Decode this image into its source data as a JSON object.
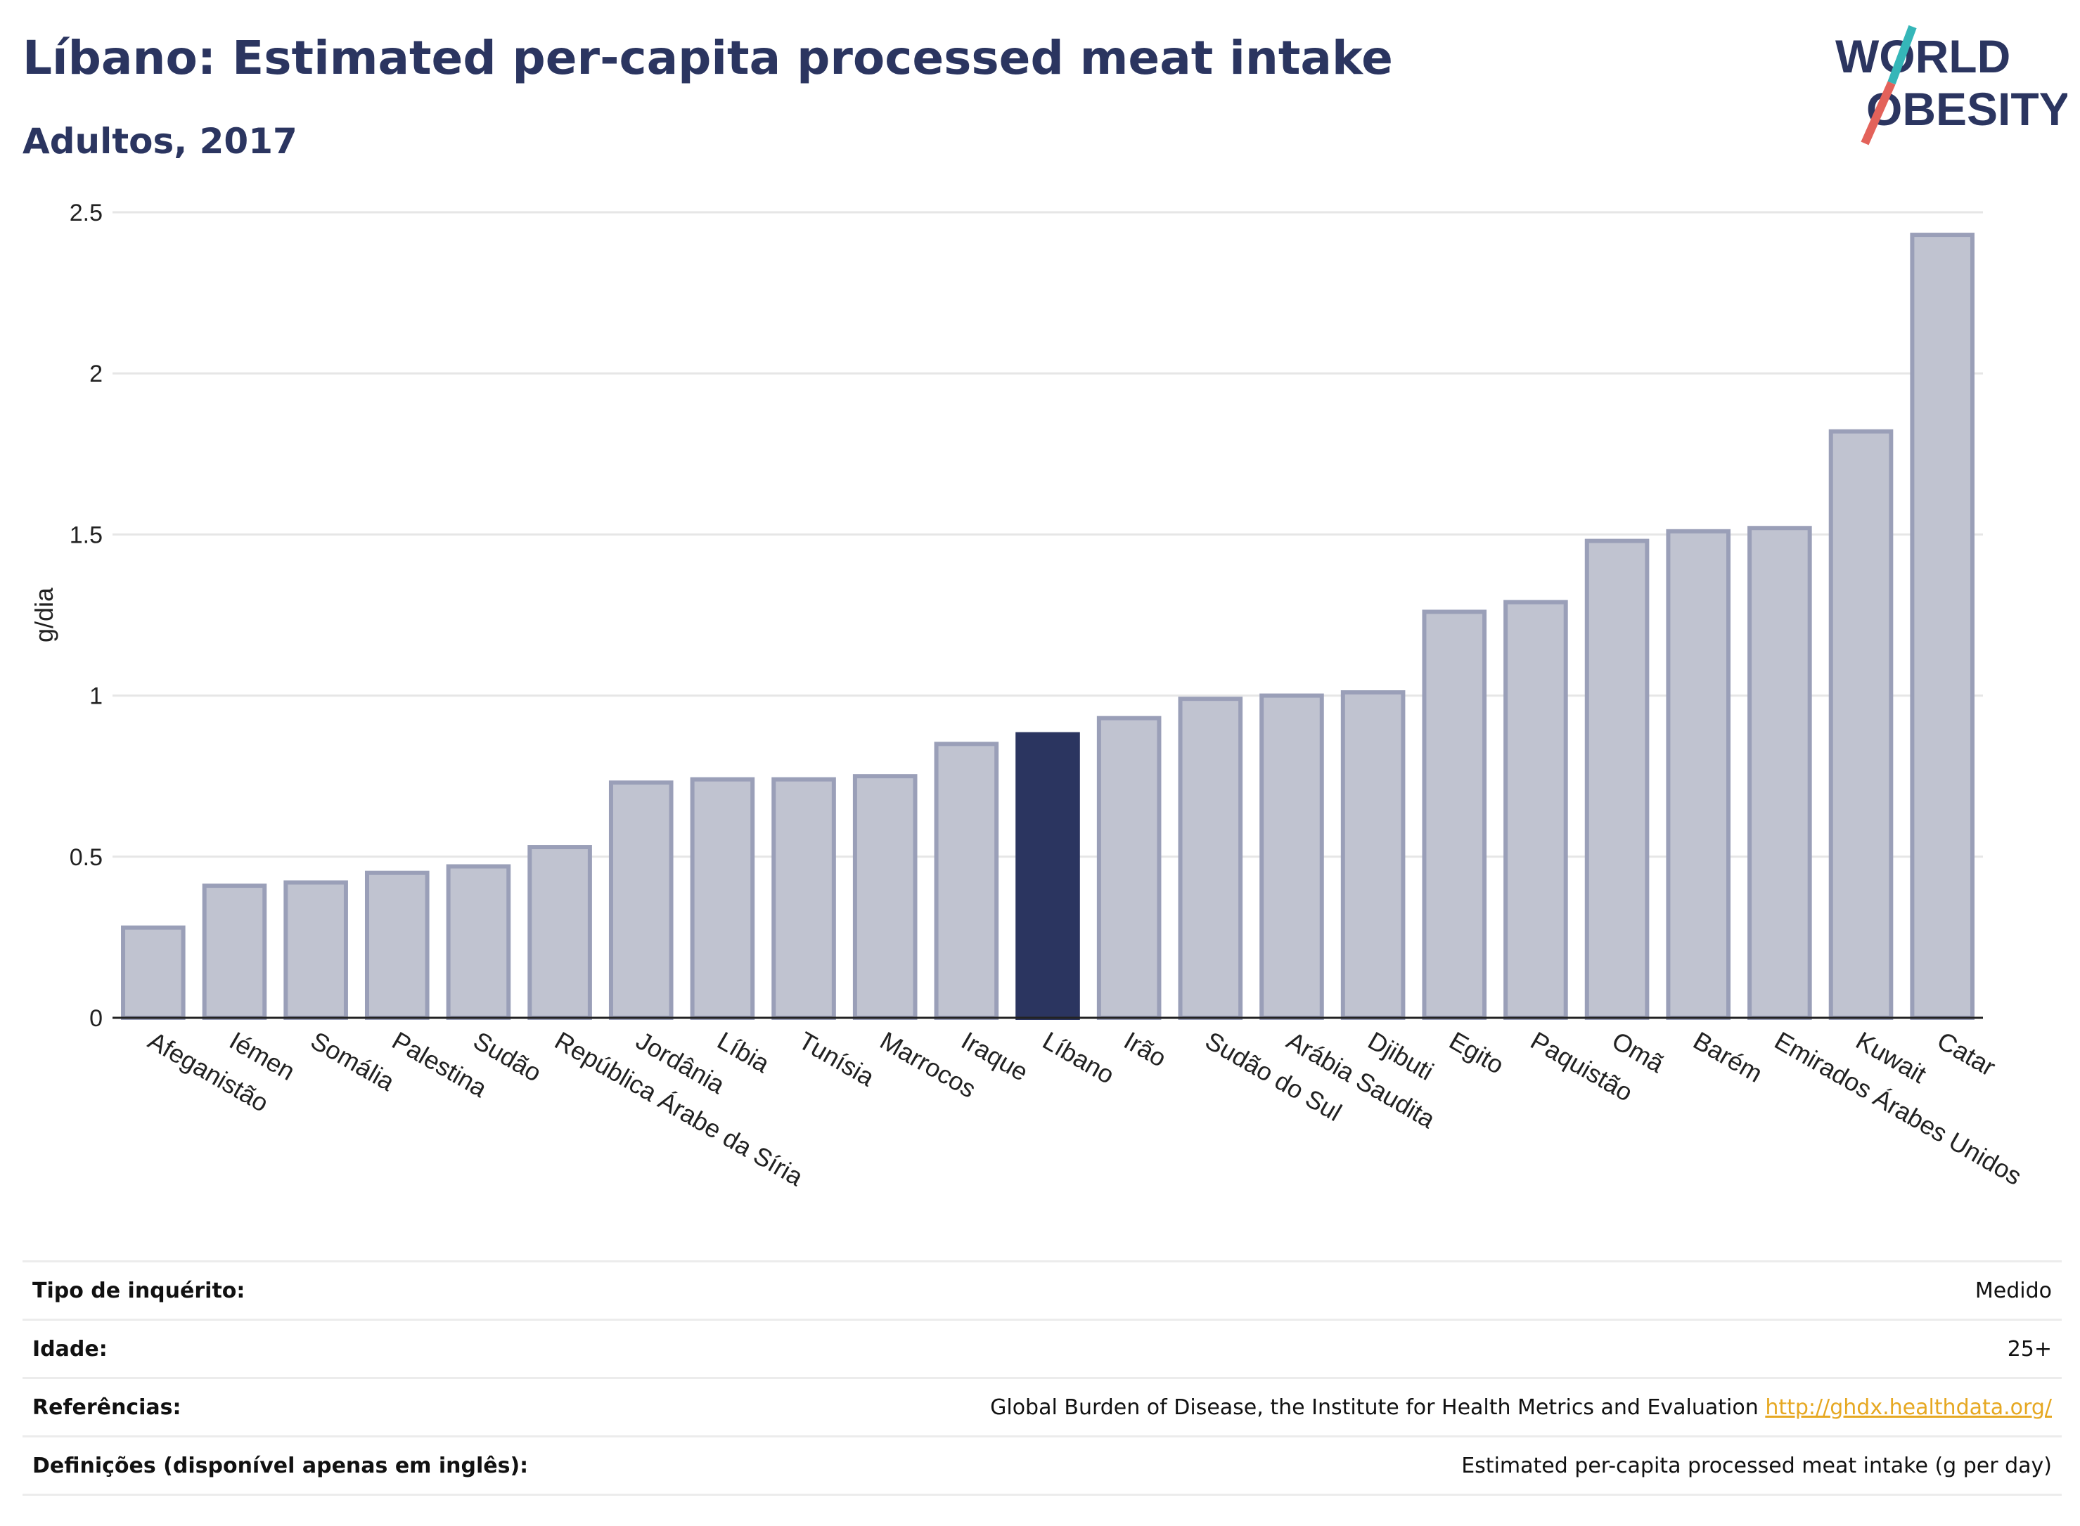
{
  "header": {
    "title": "Líbano: Estimated per-capita processed meat intake",
    "subtitle": "Adultos, 2017"
  },
  "logo": {
    "line1": "WORLD",
    "line2": "OBESITY",
    "colors": {
      "text": "#2b3560",
      "slash_top": "#35b6b8",
      "slash_bottom": "#e3625a"
    }
  },
  "chart_data": {
    "type": "bar",
    "ylabel": "g/dia",
    "xlabel": "",
    "ylim": [
      0,
      2.5
    ],
    "yticks": [
      0,
      0.5,
      1,
      1.5,
      2,
      2.5
    ],
    "ytick_labels": [
      "0",
      "0.5",
      "1",
      "1.5",
      "2",
      "2.5"
    ],
    "grid": true,
    "highlight": "Líbano",
    "colors": {
      "bar": "#c0c3d0",
      "bar_border": "#9a9fb8",
      "highlight": "#2b3560"
    },
    "categories": [
      "Afeganistão",
      "Iémen",
      "Somália",
      "Palestina",
      "Sudão",
      "República Árabe da Síria",
      "Jordânia",
      "Líbia",
      "Tunísia",
      "Marrocos",
      "Iraque",
      "Líbano",
      "Irão",
      "Sudão do Sul",
      "Arábia Saudita",
      "Djibuti",
      "Egito",
      "Paquistão",
      "Omã",
      "Barém",
      "Emirados Árabes Unidos",
      "Kuwait",
      "Catar"
    ],
    "values": [
      0.28,
      0.41,
      0.42,
      0.45,
      0.47,
      0.53,
      0.73,
      0.74,
      0.74,
      0.75,
      0.85,
      0.88,
      0.93,
      0.99,
      1.0,
      1.01,
      1.26,
      1.29,
      1.48,
      1.51,
      1.52,
      1.82,
      2.43
    ]
  },
  "info_table": [
    {
      "label": "Tipo de inquérito:",
      "value": "Medido"
    },
    {
      "label": "Idade:",
      "value": "25+"
    },
    {
      "label": "Referências:",
      "value": "Global Burden of Disease, the Institute for Health Metrics and Evaluation",
      "link": "http://ghdx.healthdata.org/"
    },
    {
      "label": "Definições (disponível apenas em inglês):",
      "value": "Estimated per-capita processed meat intake (g per day)"
    }
  ]
}
